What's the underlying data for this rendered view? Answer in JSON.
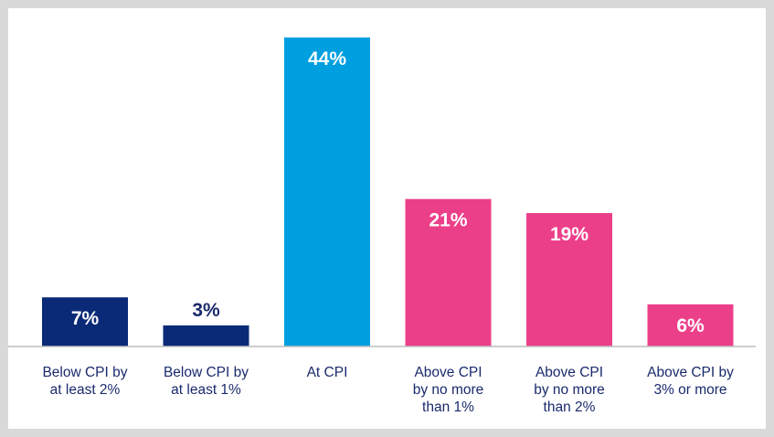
{
  "chart_data": {
    "type": "bar",
    "categories": [
      [
        "Below CPI by",
        "at least 2%"
      ],
      [
        "Below CPI by",
        "at least 1%"
      ],
      [
        "At CPI"
      ],
      [
        "Above CPI",
        "by no more",
        "than 1%"
      ],
      [
        "Above CPI",
        "by no more",
        "than 2%"
      ],
      [
        "Above CPI by",
        "3% or more"
      ]
    ],
    "values": [
      7,
      3,
      44,
      21,
      19,
      6
    ],
    "value_labels": [
      "7%",
      "3%",
      "44%",
      "21%",
      "19%",
      "6%"
    ],
    "value_label_colors": [
      "#ffffff",
      "#1a2a6c",
      "#ffffff",
      "#ffffff",
      "#ffffff",
      "#ffffff"
    ],
    "bar_colors": [
      "#0a2a78",
      "#0a2a78",
      "#009fdf",
      "#ec3f8a",
      "#ec3f8a",
      "#ec3f8a"
    ],
    "ylim": [
      0,
      44
    ],
    "grid": false,
    "legend": "none",
    "title": "",
    "xlabel": "",
    "ylabel": ""
  }
}
